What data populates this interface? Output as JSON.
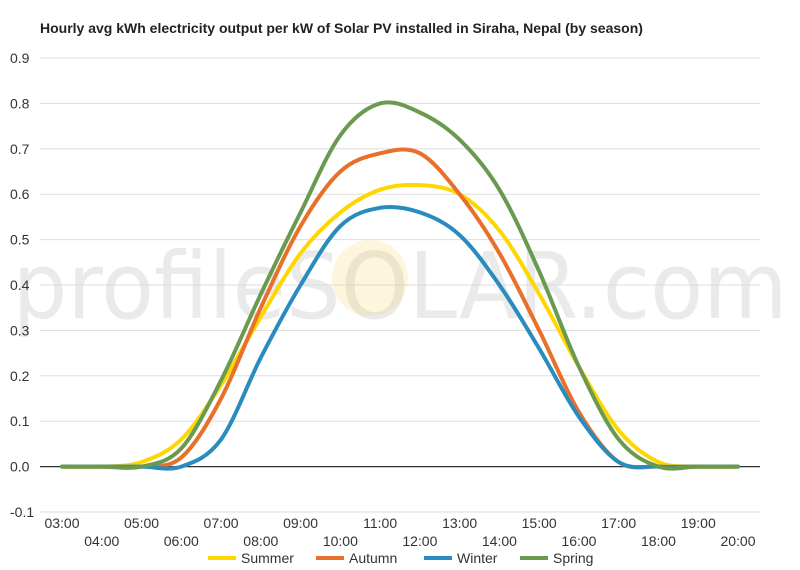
{
  "chart_data": {
    "type": "line",
    "title": "Hourly avg kWh electricity output per kW of Solar PV installed in Siraha, Nepal (by season)",
    "watermark": "profileSOLAR.com",
    "xlabel": "",
    "ylabel": "",
    "ylim": [
      -0.1,
      0.9
    ],
    "y_ticks": [
      "-0.1",
      "0.0",
      "0.1",
      "0.2",
      "0.3",
      "0.4",
      "0.5",
      "0.6",
      "0.7",
      "0.8",
      "0.9"
    ],
    "x_ticks": [
      "03:00",
      "04:00",
      "05:00",
      "06:00",
      "07:00",
      "08:00",
      "09:00",
      "10:00",
      "11:00",
      "12:00",
      "13:00",
      "14:00",
      "15:00",
      "16:00",
      "17:00",
      "18:00",
      "19:00",
      "20:00"
    ],
    "x": [
      3,
      4,
      5,
      6,
      7,
      8,
      9,
      10,
      11,
      12,
      13,
      14,
      15,
      16,
      17,
      18,
      19,
      20
    ],
    "grid": true,
    "legend_position": "bottom",
    "series": [
      {
        "name": "Summer",
        "color": "#FFD700",
        "values": [
          0.0,
          0.0,
          0.01,
          0.06,
          0.18,
          0.33,
          0.47,
          0.56,
          0.61,
          0.62,
          0.6,
          0.52,
          0.38,
          0.22,
          0.08,
          0.01,
          0.0,
          0.0
        ]
      },
      {
        "name": "Autumn",
        "color": "#E8702A",
        "values": [
          0.0,
          0.0,
          0.0,
          0.02,
          0.15,
          0.35,
          0.53,
          0.65,
          0.69,
          0.69,
          0.6,
          0.47,
          0.3,
          0.12,
          0.01,
          0.0,
          0.0,
          0.0
        ]
      },
      {
        "name": "Winter",
        "color": "#2A8BBE",
        "values": [
          0.0,
          0.0,
          0.0,
          0.0,
          0.06,
          0.24,
          0.4,
          0.53,
          0.57,
          0.56,
          0.51,
          0.4,
          0.26,
          0.11,
          0.01,
          0.0,
          0.0,
          0.0
        ]
      },
      {
        "name": "Spring",
        "color": "#6A9A4F",
        "values": [
          0.0,
          0.0,
          0.0,
          0.04,
          0.19,
          0.38,
          0.56,
          0.73,
          0.8,
          0.78,
          0.72,
          0.61,
          0.43,
          0.22,
          0.06,
          0.0,
          0.0,
          0.0
        ]
      }
    ]
  }
}
